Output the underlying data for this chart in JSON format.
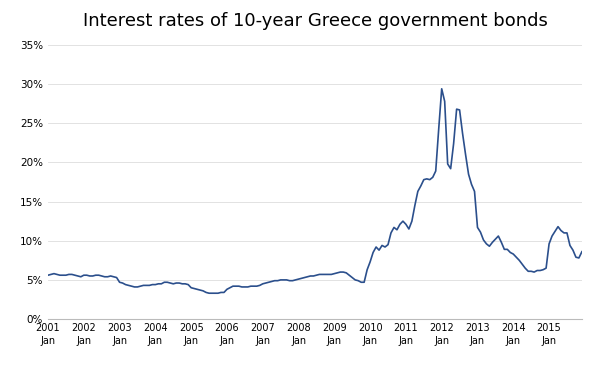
{
  "title": "Interest rates of 10-year Greece government bonds",
  "title_fontsize": 13,
  "line_color": "#2B4F8C",
  "line_width": 1.2,
  "background_color": "#FFFFFF",
  "ylim": [
    0,
    0.36
  ],
  "yticks": [
    0.0,
    0.05,
    0.1,
    0.15,
    0.2,
    0.25,
    0.3,
    0.35
  ],
  "ytick_labels": [
    "0%",
    "5%",
    "10%",
    "15%",
    "20%",
    "25%",
    "30%",
    "35%"
  ],
  "xtick_positions": [
    2001,
    2002,
    2003,
    2004,
    2005,
    2006,
    2007,
    2008,
    2009,
    2010,
    2011,
    2012,
    2013,
    2014,
    2015
  ],
  "xtick_labels_line1": [
    "2001",
    "2002",
    "2003",
    "2004",
    "2005",
    "2006",
    "2007",
    "2008",
    "2009",
    "2010",
    "2011",
    "2012",
    "2013",
    "2014",
    "2015"
  ],
  "xlim": [
    2001.0,
    2015.92
  ],
  "data": {
    "dates_num": [
      2001.0,
      2001.083,
      2001.167,
      2001.25,
      2001.333,
      2001.417,
      2001.5,
      2001.583,
      2001.667,
      2001.75,
      2001.833,
      2001.917,
      2002.0,
      2002.083,
      2002.167,
      2002.25,
      2002.333,
      2002.417,
      2002.5,
      2002.583,
      2002.667,
      2002.75,
      2002.833,
      2002.917,
      2003.0,
      2003.083,
      2003.167,
      2003.25,
      2003.333,
      2003.417,
      2003.5,
      2003.583,
      2003.667,
      2003.75,
      2003.833,
      2003.917,
      2004.0,
      2004.083,
      2004.167,
      2004.25,
      2004.333,
      2004.417,
      2004.5,
      2004.583,
      2004.667,
      2004.75,
      2004.833,
      2004.917,
      2005.0,
      2005.083,
      2005.167,
      2005.25,
      2005.333,
      2005.417,
      2005.5,
      2005.583,
      2005.667,
      2005.75,
      2005.833,
      2005.917,
      2006.0,
      2006.083,
      2006.167,
      2006.25,
      2006.333,
      2006.417,
      2006.5,
      2006.583,
      2006.667,
      2006.75,
      2006.833,
      2006.917,
      2007.0,
      2007.083,
      2007.167,
      2007.25,
      2007.333,
      2007.417,
      2007.5,
      2007.583,
      2007.667,
      2007.75,
      2007.833,
      2007.917,
      2008.0,
      2008.083,
      2008.167,
      2008.25,
      2008.333,
      2008.417,
      2008.5,
      2008.583,
      2008.667,
      2008.75,
      2008.833,
      2008.917,
      2009.0,
      2009.083,
      2009.167,
      2009.25,
      2009.333,
      2009.417,
      2009.5,
      2009.583,
      2009.667,
      2009.75,
      2009.833,
      2009.917,
      2010.0,
      2010.083,
      2010.167,
      2010.25,
      2010.333,
      2010.417,
      2010.5,
      2010.583,
      2010.667,
      2010.75,
      2010.833,
      2010.917,
      2011.0,
      2011.083,
      2011.167,
      2011.25,
      2011.333,
      2011.417,
      2011.5,
      2011.583,
      2011.667,
      2011.75,
      2011.833,
      2011.917,
      2012.0,
      2012.083,
      2012.167,
      2012.25,
      2012.333,
      2012.417,
      2012.5,
      2012.583,
      2012.667,
      2012.75,
      2012.833,
      2012.917,
      2013.0,
      2013.083,
      2013.167,
      2013.25,
      2013.333,
      2013.417,
      2013.5,
      2013.583,
      2013.667,
      2013.75,
      2013.833,
      2013.917,
      2014.0,
      2014.083,
      2014.167,
      2014.25,
      2014.333,
      2014.417,
      2014.5,
      2014.583,
      2014.667,
      2014.75,
      2014.833,
      2014.917,
      2015.0,
      2015.083,
      2015.167,
      2015.25,
      2015.333,
      2015.417,
      2015.5,
      2015.583,
      2015.667,
      2015.75,
      2015.833,
      2015.917
    ],
    "values": [
      0.056,
      0.057,
      0.058,
      0.057,
      0.056,
      0.056,
      0.056,
      0.057,
      0.057,
      0.056,
      0.055,
      0.054,
      0.056,
      0.056,
      0.055,
      0.055,
      0.056,
      0.056,
      0.055,
      0.054,
      0.054,
      0.055,
      0.054,
      0.053,
      0.047,
      0.046,
      0.044,
      0.043,
      0.042,
      0.041,
      0.041,
      0.042,
      0.043,
      0.043,
      0.043,
      0.044,
      0.044,
      0.045,
      0.045,
      0.047,
      0.047,
      0.046,
      0.045,
      0.046,
      0.046,
      0.045,
      0.045,
      0.044,
      0.04,
      0.039,
      0.038,
      0.037,
      0.036,
      0.034,
      0.033,
      0.033,
      0.033,
      0.033,
      0.034,
      0.034,
      0.038,
      0.04,
      0.042,
      0.042,
      0.042,
      0.041,
      0.041,
      0.041,
      0.042,
      0.042,
      0.042,
      0.043,
      0.045,
      0.046,
      0.047,
      0.048,
      0.049,
      0.049,
      0.05,
      0.05,
      0.05,
      0.049,
      0.049,
      0.05,
      0.051,
      0.052,
      0.053,
      0.054,
      0.055,
      0.055,
      0.056,
      0.057,
      0.057,
      0.057,
      0.057,
      0.057,
      0.058,
      0.059,
      0.06,
      0.06,
      0.059,
      0.056,
      0.053,
      0.05,
      0.049,
      0.047,
      0.047,
      0.063,
      0.073,
      0.085,
      0.092,
      0.088,
      0.094,
      0.092,
      0.095,
      0.11,
      0.117,
      0.114,
      0.121,
      0.125,
      0.121,
      0.115,
      0.125,
      0.145,
      0.163,
      0.17,
      0.178,
      0.179,
      0.178,
      0.181,
      0.189,
      0.243,
      0.294,
      0.278,
      0.198,
      0.192,
      0.224,
      0.268,
      0.267,
      0.237,
      0.21,
      0.185,
      0.172,
      0.163,
      0.117,
      0.111,
      0.101,
      0.096,
      0.093,
      0.098,
      0.102,
      0.106,
      0.098,
      0.089,
      0.089,
      0.085,
      0.083,
      0.079,
      0.075,
      0.07,
      0.065,
      0.061,
      0.061,
      0.06,
      0.062,
      0.062,
      0.063,
      0.065,
      0.096,
      0.106,
      0.112,
      0.118,
      0.113,
      0.11,
      0.11,
      0.094,
      0.088,
      0.079,
      0.078,
      0.086
    ]
  }
}
